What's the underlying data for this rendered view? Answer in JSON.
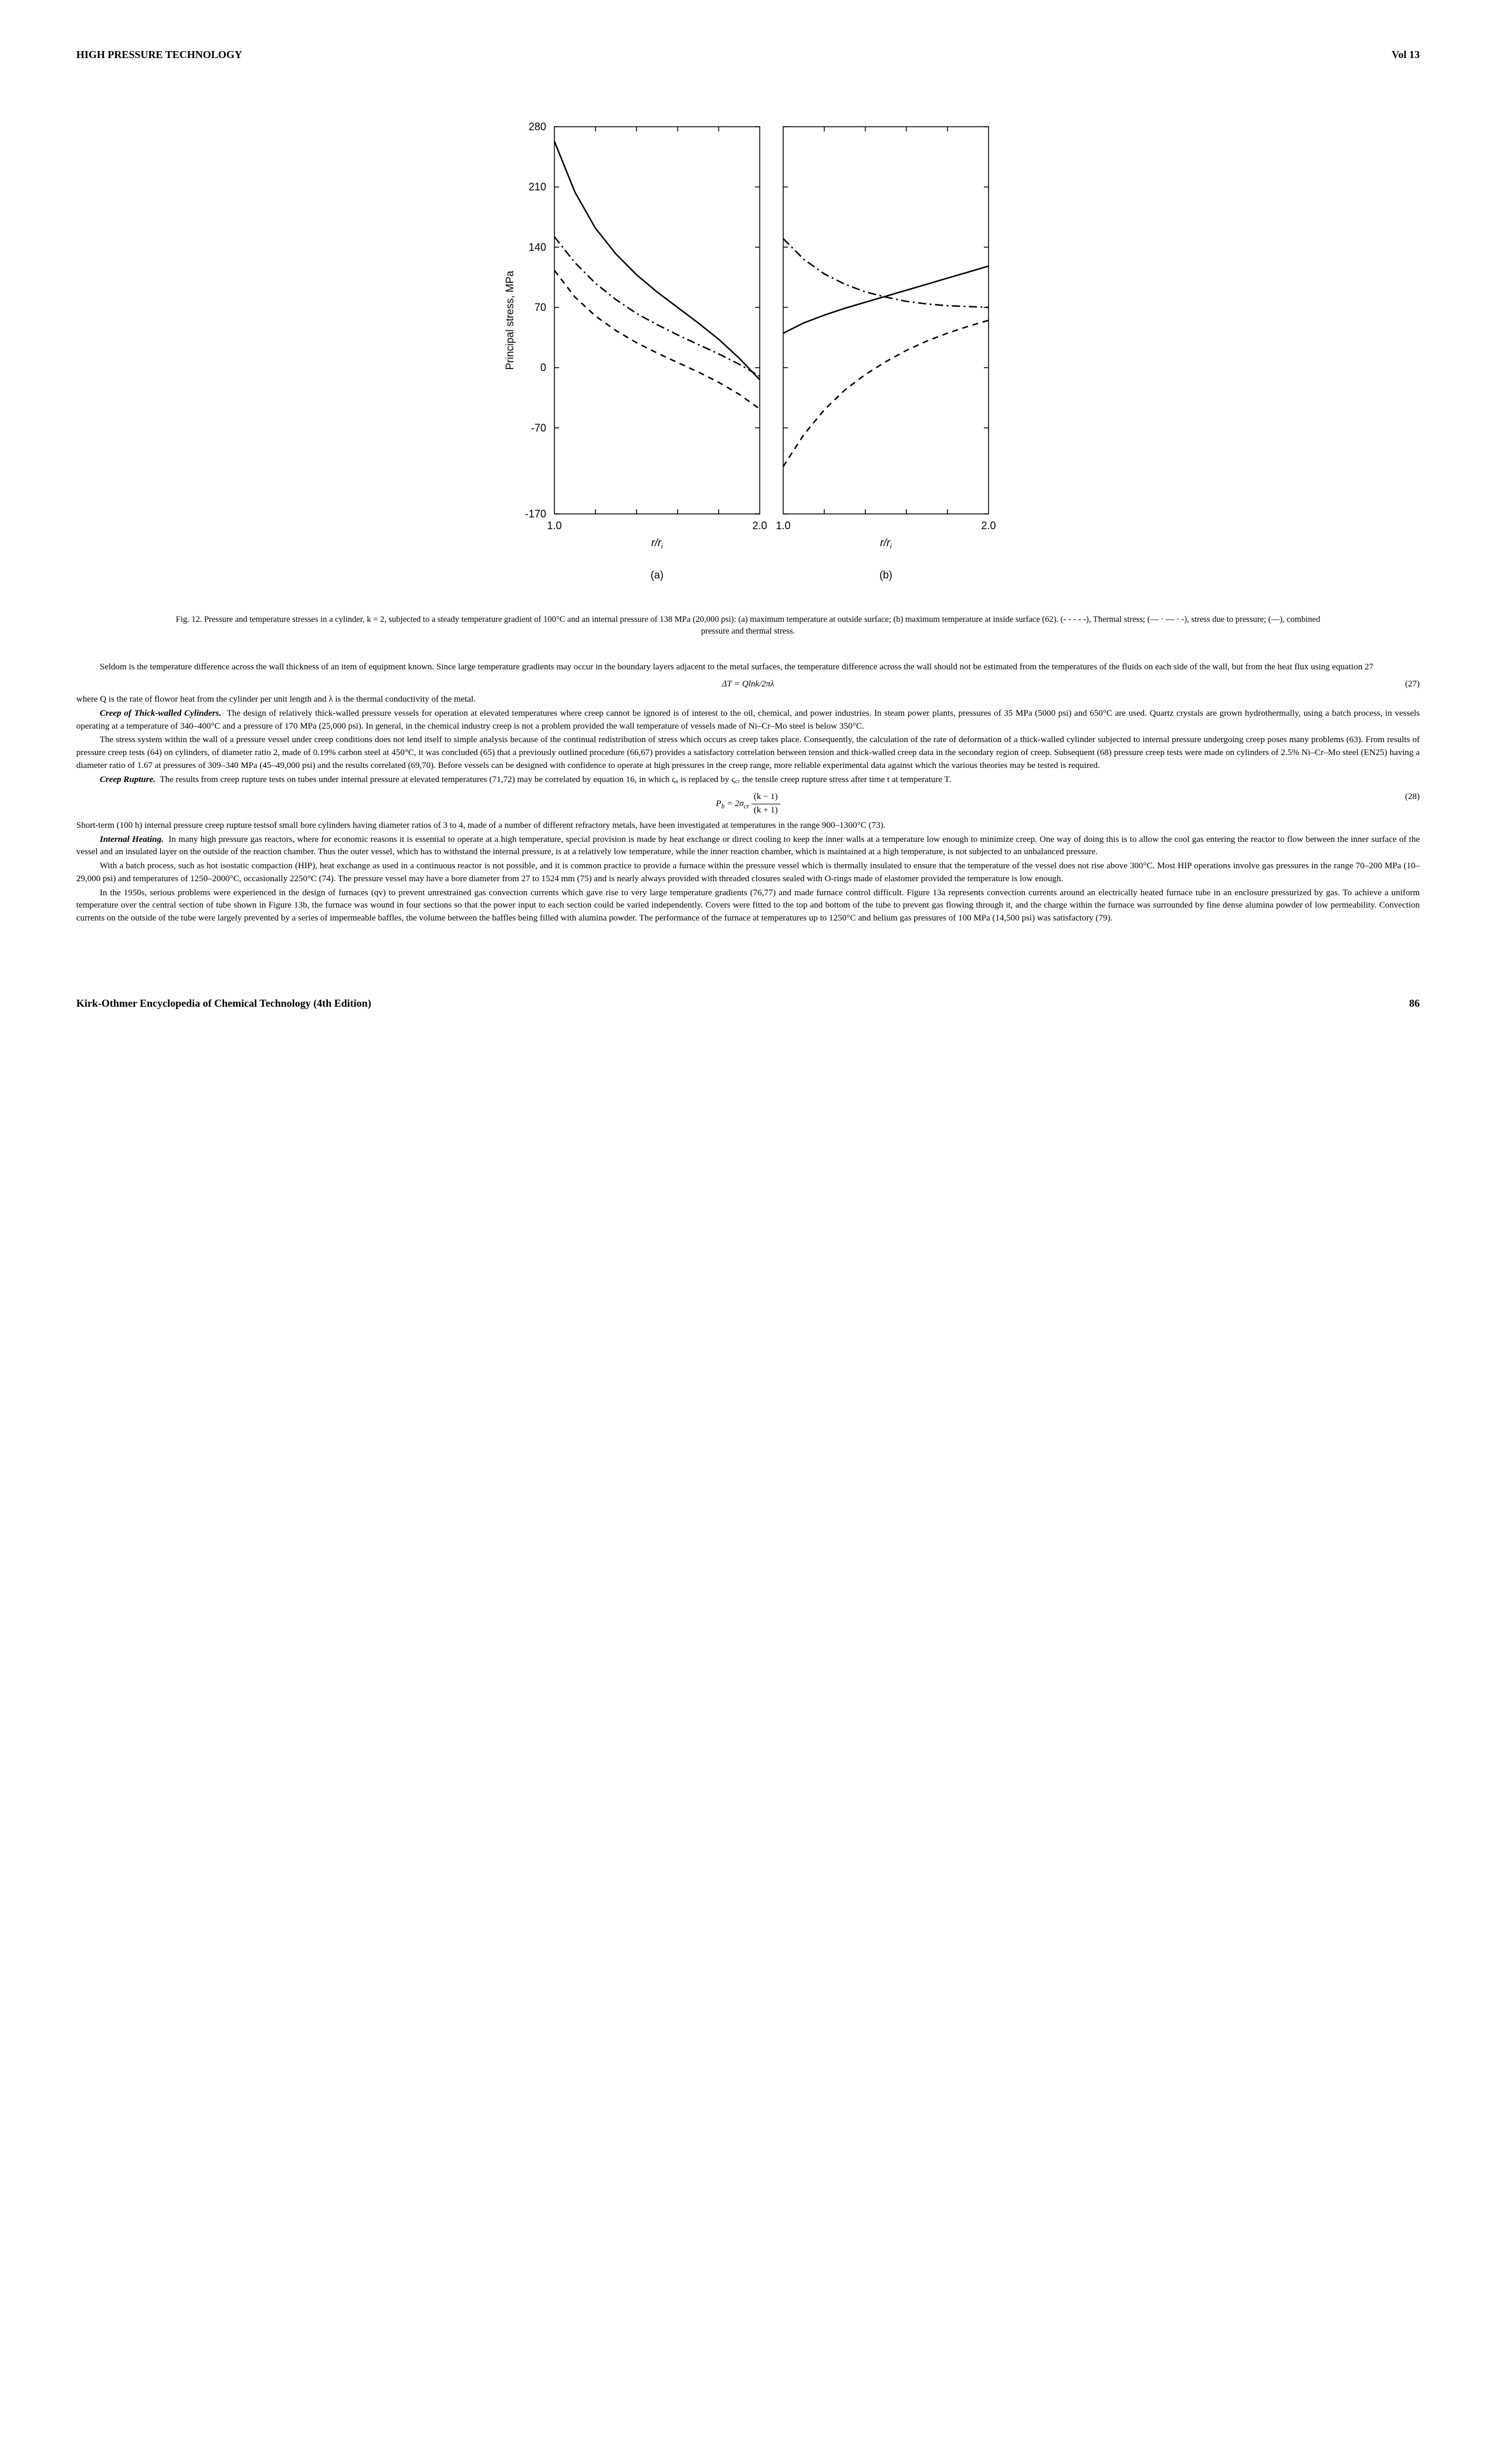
{
  "header": {
    "title": "HIGH PRESSURE TECHNOLOGY",
    "vol": "Vol 13"
  },
  "figure12": {
    "ylabel": "Principal stress, MPa",
    "yticks": [
      -170,
      -70,
      0,
      70,
      140,
      210,
      280
    ],
    "xticks": [
      1.0,
      2.0
    ],
    "xlabel": "r/r",
    "panel_a": "(a)",
    "panel_b": "(b)",
    "axis_color": "#000000",
    "line_color": "#000000",
    "panelA": {
      "solid": [
        [
          1.0,
          263
        ],
        [
          1.1,
          204
        ],
        [
          1.2,
          162
        ],
        [
          1.3,
          132
        ],
        [
          1.4,
          108
        ],
        [
          1.5,
          88
        ],
        [
          1.6,
          70
        ],
        [
          1.7,
          52
        ],
        [
          1.8,
          33
        ],
        [
          1.9,
          11
        ],
        [
          2.0,
          -14
        ]
      ],
      "dashdot": [
        [
          1.0,
          152
        ],
        [
          1.1,
          122
        ],
        [
          1.2,
          98
        ],
        [
          1.3,
          79
        ],
        [
          1.4,
          63
        ],
        [
          1.5,
          50
        ],
        [
          1.6,
          38
        ],
        [
          1.7,
          27
        ],
        [
          1.8,
          16
        ],
        [
          1.9,
          4
        ],
        [
          2.0,
          -10
        ]
      ],
      "dashed": [
        [
          1.0,
          113
        ],
        [
          1.1,
          82
        ],
        [
          1.2,
          60
        ],
        [
          1.3,
          43
        ],
        [
          1.4,
          29
        ],
        [
          1.5,
          17
        ],
        [
          1.6,
          6
        ],
        [
          1.7,
          -5
        ],
        [
          1.8,
          -17
        ],
        [
          1.9,
          -31
        ],
        [
          2.0,
          -48
        ]
      ]
    },
    "panelB": {
      "solid": [
        [
          1.0,
          40
        ],
        [
          1.1,
          52
        ],
        [
          1.2,
          61
        ],
        [
          1.3,
          69
        ],
        [
          1.4,
          76
        ],
        [
          1.5,
          83
        ],
        [
          1.6,
          90
        ],
        [
          1.7,
          97
        ],
        [
          1.8,
          104
        ],
        [
          1.9,
          111
        ],
        [
          2.0,
          118
        ]
      ],
      "dashdot": [
        [
          1.0,
          150
        ],
        [
          1.1,
          126
        ],
        [
          1.2,
          109
        ],
        [
          1.3,
          97
        ],
        [
          1.4,
          88
        ],
        [
          1.5,
          82
        ],
        [
          1.6,
          77
        ],
        [
          1.7,
          74
        ],
        [
          1.8,
          72
        ],
        [
          1.9,
          71
        ],
        [
          2.0,
          70
        ]
      ],
      "dashed": [
        [
          1.0,
          -115
        ],
        [
          1.1,
          -78
        ],
        [
          1.2,
          -49
        ],
        [
          1.3,
          -26
        ],
        [
          1.4,
          -8
        ],
        [
          1.5,
          7
        ],
        [
          1.6,
          20
        ],
        [
          1.7,
          31
        ],
        [
          1.8,
          40
        ],
        [
          1.9,
          48
        ],
        [
          2.0,
          55
        ]
      ]
    }
  },
  "caption12": "Fig. 12. Pressure and temperature stresses in a cylinder, k = 2, subjected to a steady temperature gradient of 100°C and an internal pressure of 138 MPa (20,000 psi): (a) maximum temperature at outside surface; (b) maximum temperature at inside surface (62). (- - - - -), Thermal stress; (— · — · -), stress due to pressure; (—), combined pressure and thermal stress.",
  "para1": "Seldom is the temperature difference across the wall thickness of an item of equipment known. Since large temperature gradients may occur in the boundary layers adjacent to the metal surfaces, the temperature difference across the wall should not be estimated from the temperatures of the fluids on each side of the wall, but from the heat flux using equation 27",
  "eq27": {
    "text": "ΔT = Qlnk/2πλ",
    "num": "(27)"
  },
  "para2": "where Q is the rate of flowor heat from the cylinder per unit length and λ is the thermal conductivity of the metal.",
  "sec_creep": "Creep of Thick-walled Cylinders.",
  "para3": "The design of relatively thick-walled pressure vessels for operation at elevated temperatures where creep cannot be ignored is of interest to the oil, chemical, and power industries. In steam power plants, pressures of 35 MPa (5000 psi) and 650°C are used. Quartz crystals are grown hydrothermally, using a batch process, in vessels operating at a temperature of 340–400°C and a pressure of 170 MPa (25,000 psi). In general, in the chemical industry creep is not a problem provided the wall temperature of vessels made of Ni–Cr–Mo steel is below 350°C.",
  "para4": "The stress system within the wall of a pressure vessel under creep conditions does not lend itself to simple analysis because of the continual redistribution of stress which occurs as creep takes place. Consequently, the calculation of the rate of deformation of a thick-walled cylinder subjected to internal pressure undergoing creep poses many problems (63). From results of pressure creep tests (64) on cylinders, of diameter ratio 2, made of 0.19% carbon steel at 450°C, it was concluded (65) that a previously outlined procedure (66,67) provides a satisfactory correlation between tension and thick-walled creep data in the secondary region of creep. Subsequent (68) pressure creep tests were made on cylinders of 2.5% Ni–Cr–Mo steel (EN25) having a diameter ratio of 1.67 at pressures of 309–340 MPa (45–49,000 psi) and the results correlated (69,70). Before vessels can be designed with confidence to operate at high pressures in the creep range, more reliable experimental data against which the various theories may be tested is required.",
  "sec_rupture": "Creep Rupture.",
  "para5": "The results from creep rupture tests on tubes under internal pressure at elevated temperatures (71,72) may be correlated by equation 16, in which ςᵤ is replaced by ς꜀ᵣ the tensile creep rupture stress after time t at temperature T.",
  "eq28": {
    "pre": "P",
    "sub": "b",
    "eq": " = 2σ",
    "sub2": "cr",
    "frac_n": "(k − 1)",
    "frac_d": "(k + 1)",
    "num": "(28)"
  },
  "para6": "Short-term (100 h) internal pressure creep rupture testsof small bore cylinders having diameter ratios of 3 to 4, made of a number of different refractory metals, have been investigated at temperatures in the range 900–1300°C (73).",
  "sec_heating": "Internal Heating.",
  "para7": "In many high pressure gas reactors, where for economic reasons it is essential to operate at a high temperature, special provision is made by heat exchange or direct cooling to keep the inner walls at a temperature low enough to minimize creep. One way of doing this is to allow the cool gas entering the reactor to flow between the inner surface of the vessel and an insulated layer on the outside of the reaction chamber. Thus the outer vessel, which has to withstand the internal pressure, is at a relatively low temperature, while the inner reaction chamber, which is maintained at a high temperature, is not subjected to an unbalanced pressure.",
  "para8": "With a batch process, such as hot isostatic compaction (HIP), heat exchange as used in a continuous reactor is not possible, and it is common practice to provide a furnace within the pressure vessel which is thermally insulated to ensure that the temperature of the vessel does not rise above 300°C. Most HIP operations involve gas pressures in the range 70–200 MPa (10–29,000 psi) and temperatures of 1250–2000°C, occasionally 2250°C (74). The pressure vessel may have a bore diameter from 27 to 1524 mm (75) and is nearly always provided with threaded closures sealed with O-rings made of elastomer provided the temperature is low enough.",
  "para9": "In the 1950s, serious problems were experienced in the design of furnaces (qv) to prevent unrestrained gas convection currents which gave rise to very large temperature gradients (76,77) and made furnace control difficult. Figure 13a represents convection currents around an electrically heated furnace tube in an enclosure pressurized by gas. To achieve a uniform temperature over the central section of tube shown in Figure 13b, the furnace was wound in four sections so that the power input to each section could be varied independently. Covers were fitted to the top and bottom of the tube to prevent gas flowing through it, and the charge within the furnace was surrounded by fine dense alumina powder of low permeability. Convection currents on the outside of the tube were largely prevented by a series of impermeable baffles, the volume between the baffles being filled with alumina powder. The performance of the furnace at temperatures up to 1250°C and helium gas pressures of 100 MPa (14,500 psi) was satisfactory (79).",
  "footer": {
    "title": "Kirk-Othmer Encyclopedia of Chemical Technology (4th Edition)",
    "page": "86"
  }
}
